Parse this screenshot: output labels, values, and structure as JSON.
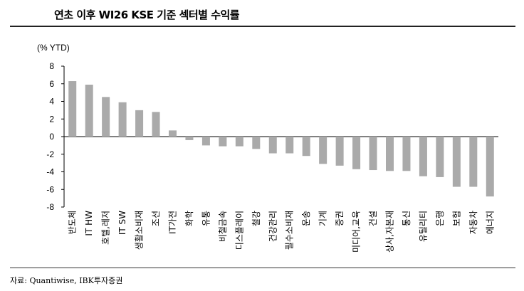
{
  "header": {
    "title": "연초 이후 WI26 KSE 기준 섹터별 수익률"
  },
  "footer": {
    "source": "자료: Quantiwise, IBK투자증권"
  },
  "chart_data": {
    "type": "bar",
    "unit_label": "(% YTD)",
    "ylim": [
      -8,
      8
    ],
    "yticks": [
      "8",
      "6",
      "4",
      "2",
      "0",
      "-2",
      "-4",
      "-6",
      "-8"
    ],
    "grid": false,
    "legend": "none",
    "categories": [
      "반도체",
      "IT HW",
      "호텔,레저",
      "IT SW",
      "생활소비재",
      "조선",
      "IT가전",
      "화학",
      "유통",
      "비철금속",
      "디스플레이",
      "철강",
      "건강관리",
      "필수소비재",
      "운송",
      "기계",
      "증권",
      "미디어,교육",
      "건설",
      "상사,자본재",
      "통신",
      "유틸리티",
      "은행",
      "보험",
      "자동차",
      "에너지"
    ],
    "values": [
      6.3,
      5.9,
      4.5,
      3.9,
      3.0,
      2.8,
      0.7,
      -0.4,
      -1.0,
      -1.1,
      -1.1,
      -1.4,
      -1.9,
      -1.9,
      -2.2,
      -3.1,
      -3.3,
      -3.7,
      -3.8,
      -3.9,
      -3.9,
      -4.5,
      -4.6,
      -5.7,
      -5.7,
      -6.8
    ],
    "bar_color": "#aaaaaa"
  }
}
